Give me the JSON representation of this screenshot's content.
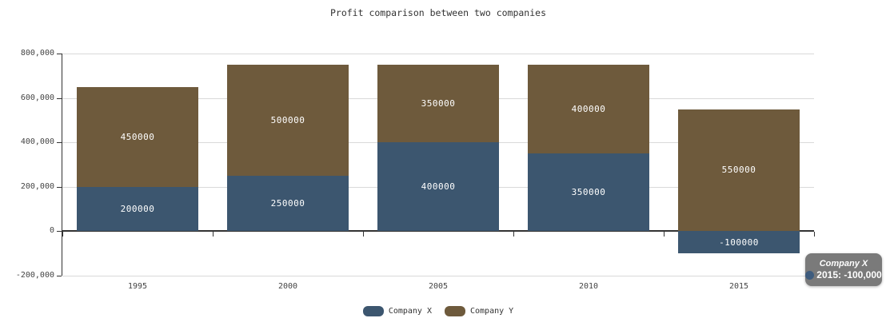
{
  "chart_data": {
    "type": "bar",
    "stacked": true,
    "title": "Profit comparison between two companies",
    "categories": [
      "1995",
      "2000",
      "2005",
      "2010",
      "2015"
    ],
    "series": [
      {
        "name": "Company X",
        "color": "#3c566f",
        "values": [
          200000,
          250000,
          400000,
          350000,
          -100000
        ],
        "labels": [
          "200000",
          "250000",
          "400000",
          "350000",
          "-100000"
        ]
      },
      {
        "name": "Company Y",
        "color": "#6e5a3c",
        "values": [
          450000,
          500000,
          350000,
          400000,
          550000
        ],
        "labels": [
          "450000",
          "500000",
          "350000",
          "400000",
          "550000"
        ]
      }
    ],
    "xlabel": "",
    "ylabel": "",
    "ylim": [
      -200000,
      800000
    ],
    "yticks": [
      {
        "value": 800000,
        "label": "800,000"
      },
      {
        "value": 600000,
        "label": "600,000"
      },
      {
        "value": 400000,
        "label": "400,000"
      },
      {
        "value": 200000,
        "label": "200,000"
      },
      {
        "value": 0,
        "label": "0"
      },
      {
        "value": -200000,
        "label": "-200,000"
      }
    ],
    "grid": true,
    "grid_color": "#d9d9d9",
    "axis_color": "#333333",
    "bar_label_color": "#ffffff",
    "legend_position": "bottom"
  },
  "tooltip": {
    "series_name": "Company X",
    "value_text": "2015: -100,000",
    "bg_color": "#7a7a7a",
    "text_color": "#ffffff",
    "marker_color": "#3e5c7e"
  }
}
